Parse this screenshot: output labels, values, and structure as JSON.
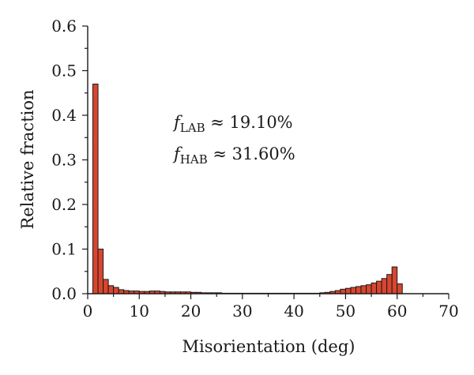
{
  "chart_data": {
    "type": "bar",
    "title": "",
    "xlabel": "Misorientation (deg)",
    "ylabel": "Relative fraction",
    "xlim": [
      0,
      70
    ],
    "ylim": [
      0,
      0.6
    ],
    "x_ticks": [
      "0",
      "10",
      "20",
      "30",
      "40",
      "50",
      "60",
      "70"
    ],
    "y_ticks": [
      "0.0",
      "0.1",
      "0.2",
      "0.3",
      "0.4",
      "0.5",
      "0.6"
    ],
    "x_tick_values": [
      0,
      10,
      20,
      30,
      40,
      50,
      60,
      70
    ],
    "y_tick_values": [
      0,
      0.1,
      0.2,
      0.3,
      0.4,
      0.5,
      0.6
    ],
    "bin_width": 1,
    "bin_starts": [
      1,
      2,
      3,
      4,
      5,
      6,
      7,
      8,
      9,
      10,
      11,
      12,
      13,
      14,
      15,
      16,
      17,
      18,
      19,
      20,
      21,
      22,
      23,
      24,
      25,
      26,
      27,
      28,
      29,
      30,
      31,
      32,
      33,
      34,
      35,
      36,
      37,
      38,
      39,
      40,
      41,
      42,
      43,
      44,
      45,
      46,
      47,
      48,
      49,
      50,
      51,
      52,
      53,
      54,
      55,
      56,
      57,
      58,
      59,
      60
    ],
    "values": [
      0.47,
      0.1,
      0.032,
      0.018,
      0.014,
      0.009,
      0.007,
      0.006,
      0.006,
      0.005,
      0.005,
      0.006,
      0.006,
      0.005,
      0.004,
      0.004,
      0.004,
      0.004,
      0.004,
      0.003,
      0.003,
      0.002,
      0.002,
      0.002,
      0.002,
      0.001,
      0.001,
      0.001,
      0.001,
      0.001,
      0.001,
      0.001,
      0.001,
      0.001,
      0.001,
      0.001,
      0.001,
      0.001,
      0.001,
      0.001,
      0.001,
      0.001,
      0.001,
      0.001,
      0.002,
      0.003,
      0.005,
      0.007,
      0.01,
      0.012,
      0.014,
      0.016,
      0.018,
      0.02,
      0.024,
      0.028,
      0.034,
      0.043,
      0.06,
      0.022
    ],
    "bar_color": "#d9452e",
    "grid": false,
    "annotations": [
      {
        "symbol": "f",
        "subscript": "LAB",
        "text": " ≈ 19.10%"
      },
      {
        "symbol": "f",
        "subscript": "HAB",
        "text": " ≈ 31.60%"
      }
    ]
  }
}
